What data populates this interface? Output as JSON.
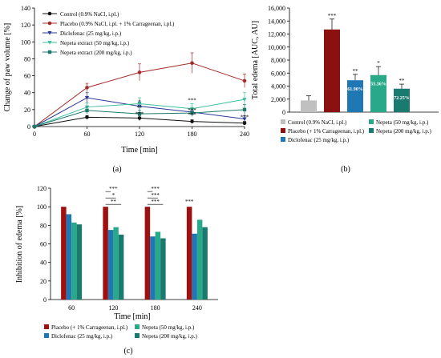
{
  "chart_data": [
    {
      "id": "a",
      "type": "line",
      "panel_label": "(a)",
      "xlabel": "Time [min]",
      "ylabel": "Change of paw volume [%]",
      "x": [
        0,
        60,
        120,
        180,
        240
      ],
      "xticks": [
        "0",
        "60",
        "120",
        "180",
        "240"
      ],
      "xlim": [
        0,
        240
      ],
      "ylim": [
        0,
        140
      ],
      "yticks": [
        "0",
        "20",
        "40",
        "60",
        "80",
        "100",
        "120",
        "140"
      ],
      "legend_position": "top-left",
      "series": [
        {
          "name": "Control (0.9% NaCl, i.pl.)",
          "color": "#111111",
          "marker": "circle",
          "values": [
            0,
            11,
            10,
            6,
            4
          ],
          "errors": [
            0,
            2,
            3,
            2,
            2
          ]
        },
        {
          "name": "Placebo (0.9% NaCl, i.pl. + 1% Carrageenan, i.pl.)",
          "color": "#a52a2a",
          "marker": "circle",
          "values": [
            0,
            46,
            64,
            75,
            54
          ],
          "errors": [
            0,
            5,
            10,
            12,
            8
          ]
        },
        {
          "name": "Diclofenac (25 mg/kg, i.p.)",
          "color": "#2b3a9a",
          "marker": "triangle-down",
          "values": [
            0,
            34,
            24,
            17,
            9
          ],
          "errors": [
            0,
            6,
            5,
            4,
            4
          ]
        },
        {
          "name": "Nepeta extract (50 mg/kg, i.p.)",
          "color": "#3fbf9f",
          "marker": "triangle-down",
          "values": [
            0,
            23,
            27,
            21,
            32
          ],
          "errors": [
            0,
            5,
            7,
            6,
            8
          ]
        },
        {
          "name": "Nepeta extract (200 mg/kg, i.p.)",
          "color": "#1f7a6e",
          "marker": "square",
          "values": [
            0,
            19,
            15,
            16,
            20
          ],
          "errors": [
            0,
            4,
            4,
            4,
            6
          ]
        }
      ],
      "annotations": [
        {
          "text": "*",
          "x": 120,
          "y": 27
        },
        {
          "text": "**",
          "x": 120,
          "y": 20
        },
        {
          "text": "***",
          "x": 120,
          "y": 13
        },
        {
          "text": "***",
          "x": 180,
          "y": 29
        },
        {
          "text": "***",
          "x": 180,
          "y": 17
        },
        {
          "text": "***",
          "x": 180,
          "y": 12
        },
        {
          "text": "***",
          "x": 240,
          "y": 9
        }
      ]
    },
    {
      "id": "b",
      "type": "bar",
      "panel_label": "(b)",
      "ylabel": "Total edema [AUC, AU]",
      "ylim": [
        0,
        16000
      ],
      "yticks": [
        "0",
        "2,000",
        "4,000",
        "6,000",
        "8,000",
        "10,000",
        "12,000",
        "14,000",
        "16,000"
      ],
      "categories": [
        "Control (0.9% NaCl, i.pl.)",
        "Placebo (+ 1% Carrageenan, i.pl.)",
        "Diclofenac (25 mg/kg, i.p.)",
        "Nepeta (50 mg/kg, i.p.)",
        "Nepeta (200 mg/kg, i.p.)"
      ],
      "values": [
        1800,
        12700,
        4900,
        5700,
        3600
      ],
      "errors": [
        700,
        1600,
        900,
        1300,
        700
      ],
      "colors": [
        "#c0c0c0",
        "#8b1010",
        "#1f78b4",
        "#2aa98a",
        "#1a7a70"
      ],
      "bar_labels": [
        "",
        "",
        "61.90%",
        "55.36%",
        "72.25%"
      ],
      "significance": [
        "",
        "***",
        "**",
        "*",
        "**"
      ]
    },
    {
      "id": "c",
      "type": "bar",
      "panel_label": "(c)",
      "xlabel": "Time [min]",
      "ylabel": "Inhibition of edema [%]",
      "ylim": [
        0,
        120
      ],
      "yticks": [
        "0",
        "20",
        "40",
        "60",
        "80",
        "100",
        "120"
      ],
      "categories": [
        "60",
        "120",
        "180",
        "240"
      ],
      "series": [
        {
          "name": "Placebo (+ 1% Carrageenan, i.pl.)",
          "color": "#a01010",
          "values": [
            100,
            100,
            100,
            100
          ]
        },
        {
          "name": "Diclofenac (25 mg/kg, i.p.)",
          "color": "#1f78b4",
          "values": [
            92,
            75,
            68,
            71
          ]
        },
        {
          "name": "Nepeta (50 mg/kg, i.p.)",
          "color": "#2aa98a",
          "values": [
            83,
            78,
            73,
            86
          ]
        },
        {
          "name": "Nepeta (200 mg/kg, i.p.)",
          "color": "#1a7a70",
          "values": [
            81,
            70,
            66,
            78
          ]
        }
      ],
      "significance": [
        {
          "category": "120",
          "marks": [
            "***",
            "*",
            "**"
          ]
        },
        {
          "category": "180",
          "marks": [
            "***",
            "***",
            "***"
          ]
        },
        {
          "category": "240",
          "marks": [
            "***"
          ]
        }
      ]
    }
  ]
}
